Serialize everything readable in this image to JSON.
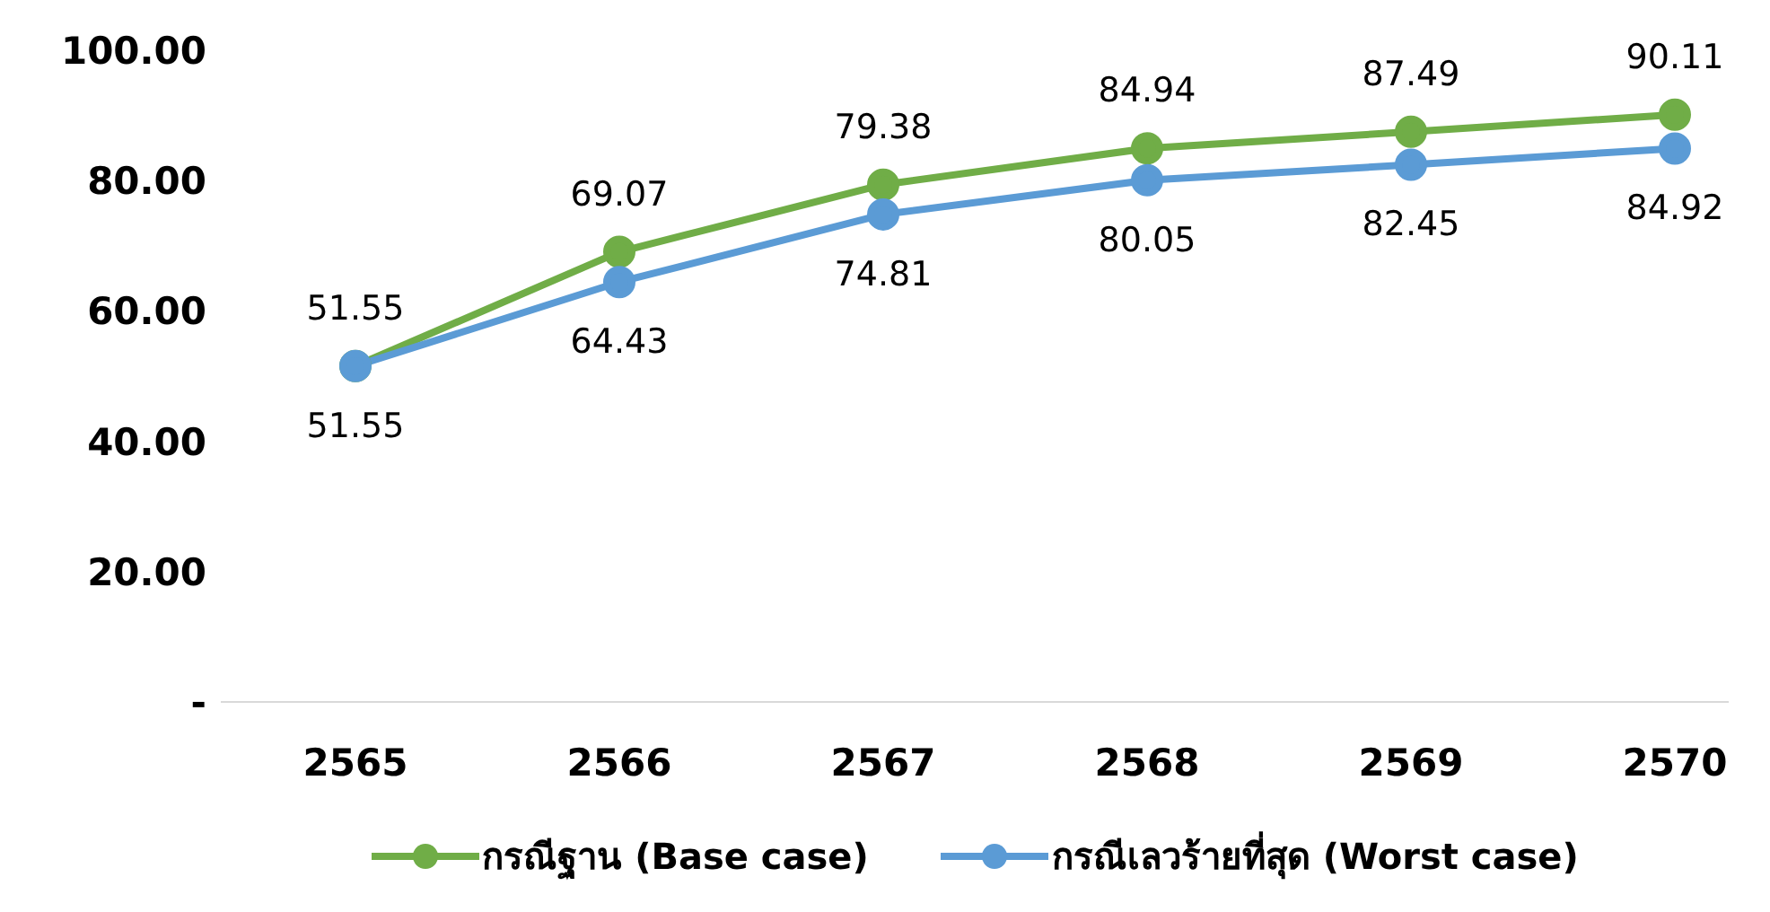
{
  "chart_data": {
    "type": "line",
    "categories": [
      "2565",
      "2566",
      "2567",
      "2568",
      "2569",
      "2570"
    ],
    "series": [
      {
        "name": "กรณีฐาน (Base case)",
        "color": "#70ad47",
        "values": [
          51.55,
          69.07,
          79.38,
          84.94,
          87.49,
          90.11
        ]
      },
      {
        "name": "กรณีเลวร้ายที่สุด (Worst case)",
        "color": "#5b9bd5",
        "values": [
          51.55,
          64.43,
          74.81,
          80.05,
          82.45,
          84.92
        ]
      }
    ],
    "ylim": [
      0,
      100
    ],
    "yticks": [
      {
        "value": 0,
        "label": "-"
      },
      {
        "value": 20,
        "label": "20.00"
      },
      {
        "value": 40,
        "label": "40.00"
      },
      {
        "value": 60,
        "label": "60.00"
      },
      {
        "value": 80,
        "label": "80.00"
      },
      {
        "value": 100,
        "label": "100.00"
      }
    ],
    "grid": false,
    "legend": "bottom",
    "marker": "circle",
    "line_style": "solid",
    "data_labels": true
  }
}
